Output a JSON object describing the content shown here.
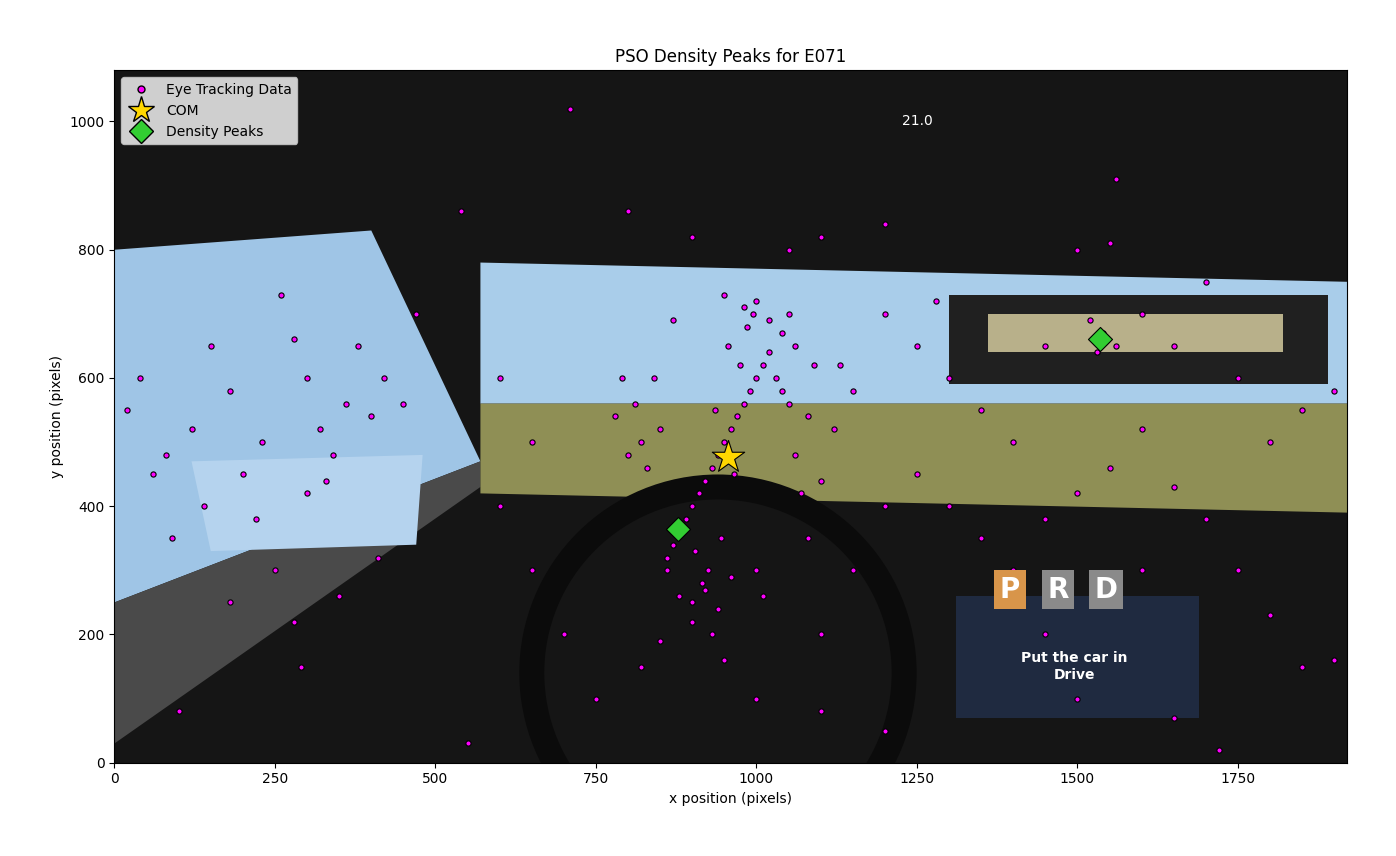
{
  "chart_data": {
    "type": "scatter",
    "title": "PSO Density Peaks for E071",
    "x_label": "x position (pixels)",
    "y_label": "y position (pixels)",
    "xlim": [
      0,
      1920
    ],
    "ylim": [
      0,
      1080
    ],
    "xticks": [
      0,
      250,
      500,
      750,
      1000,
      1250,
      1500,
      1750
    ],
    "yticks": [
      0,
      200,
      400,
      600,
      800,
      1000
    ],
    "legend": "upper left",
    "grid": false,
    "series": [
      {
        "name": "Eye Tracking Data",
        "color": "#ff00ff",
        "marker": "o",
        "points": [
          [
            950,
            500
          ],
          [
            960,
            520
          ],
          [
            940,
            480
          ],
          [
            970,
            540
          ],
          [
            930,
            460
          ],
          [
            980,
            560
          ],
          [
            920,
            440
          ],
          [
            990,
            580
          ],
          [
            910,
            420
          ],
          [
            1000,
            600
          ],
          [
            900,
            400
          ],
          [
            1010,
            620
          ],
          [
            890,
            380
          ],
          [
            1020,
            640
          ],
          [
            880,
            360
          ],
          [
            1030,
            600
          ],
          [
            870,
            340
          ],
          [
            1040,
            580
          ],
          [
            860,
            320
          ],
          [
            1050,
            560
          ],
          [
            955,
            650
          ],
          [
            945,
            350
          ],
          [
            965,
            450
          ],
          [
            935,
            550
          ],
          [
            975,
            620
          ],
          [
            925,
            300
          ],
          [
            985,
            680
          ],
          [
            915,
            280
          ],
          [
            995,
            700
          ],
          [
            905,
            330
          ],
          [
            850,
            520
          ],
          [
            1060,
            480
          ],
          [
            840,
            600
          ],
          [
            1070,
            420
          ],
          [
            830,
            460
          ],
          [
            1080,
            540
          ],
          [
            820,
            500
          ],
          [
            1090,
            620
          ],
          [
            810,
            560
          ],
          [
            1100,
            440
          ],
          [
            880,
            260
          ],
          [
            900,
            250
          ],
          [
            920,
            270
          ],
          [
            940,
            240
          ],
          [
            960,
            290
          ],
          [
            980,
            710
          ],
          [
            1000,
            720
          ],
          [
            1020,
            690
          ],
          [
            1040,
            670
          ],
          [
            1060,
            650
          ],
          [
            800,
            480
          ],
          [
            1120,
            520
          ],
          [
            790,
            600
          ],
          [
            1130,
            620
          ],
          [
            870,
            690
          ],
          [
            1050,
            700
          ],
          [
            950,
            730
          ],
          [
            1000,
            300
          ],
          [
            900,
            220
          ],
          [
            1080,
            350
          ],
          [
            1150,
            580
          ],
          [
            780,
            540
          ],
          [
            860,
            300
          ],
          [
            1010,
            260
          ],
          [
            930,
            200
          ],
          [
            20,
            550
          ],
          [
            40,
            600
          ],
          [
            80,
            480
          ],
          [
            120,
            520
          ],
          [
            150,
            650
          ],
          [
            180,
            580
          ],
          [
            200,
            450
          ],
          [
            230,
            500
          ],
          [
            260,
            730
          ],
          [
            280,
            660
          ],
          [
            300,
            600
          ],
          [
            320,
            520
          ],
          [
            340,
            480
          ],
          [
            360,
            560
          ],
          [
            380,
            650
          ],
          [
            400,
            540
          ],
          [
            420,
            600
          ],
          [
            450,
            560
          ],
          [
            470,
            700
          ],
          [
            220,
            380
          ],
          [
            250,
            300
          ],
          [
            300,
            420
          ],
          [
            330,
            440
          ],
          [
            180,
            250
          ],
          [
            90,
            350
          ],
          [
            140,
            400
          ],
          [
            280,
            220
          ],
          [
            350,
            260
          ],
          [
            410,
            320
          ],
          [
            60,
            450
          ],
          [
            100,
            80
          ],
          [
            290,
            150
          ],
          [
            1200,
            700
          ],
          [
            1250,
            650
          ],
          [
            1300,
            600
          ],
          [
            1350,
            550
          ],
          [
            1400,
            500
          ],
          [
            1450,
            650
          ],
          [
            1500,
            800
          ],
          [
            1550,
            810
          ],
          [
            1600,
            700
          ],
          [
            1650,
            650
          ],
          [
            1700,
            750
          ],
          [
            1750,
            600
          ],
          [
            1800,
            500
          ],
          [
            1850,
            550
          ],
          [
            1900,
            580
          ],
          [
            1250,
            450
          ],
          [
            1300,
            400
          ],
          [
            1350,
            350
          ],
          [
            1400,
            300
          ],
          [
            1450,
            380
          ],
          [
            1500,
            420
          ],
          [
            1550,
            460
          ],
          [
            1600,
            520
          ],
          [
            1650,
            430
          ],
          [
            1700,
            380
          ],
          [
            1750,
            300
          ],
          [
            1800,
            230
          ],
          [
            1850,
            150
          ],
          [
            1900,
            160
          ],
          [
            1450,
            200
          ],
          [
            1500,
            100
          ],
          [
            1600,
            300
          ],
          [
            1650,
            70
          ],
          [
            1720,
            20
          ],
          [
            1560,
            910
          ],
          [
            1280,
            720
          ],
          [
            1530,
            640
          ],
          [
            1540,
            670
          ],
          [
            1520,
            690
          ],
          [
            1560,
            650
          ],
          [
            540,
            860
          ],
          [
            710,
            1020
          ],
          [
            800,
            860
          ],
          [
            900,
            820
          ],
          [
            1050,
            800
          ],
          [
            1100,
            820
          ],
          [
            1200,
            840
          ],
          [
            600,
            400
          ],
          [
            650,
            300
          ],
          [
            700,
            200
          ],
          [
            750,
            100
          ],
          [
            820,
            150
          ],
          [
            1000,
            100
          ],
          [
            1100,
            80
          ],
          [
            1200,
            50
          ],
          [
            550,
            30
          ],
          [
            600,
            600
          ],
          [
            650,
            500
          ],
          [
            1150,
            300
          ],
          [
            1200,
            400
          ],
          [
            1100,
            200
          ],
          [
            950,
            160
          ],
          [
            850,
            190
          ]
        ]
      },
      {
        "name": "COM",
        "color": "#ffd700",
        "marker": "*",
        "points": [
          [
            955,
            477
          ]
        ]
      },
      {
        "name": "Density Peaks",
        "color": "#32cd32",
        "marker": "D",
        "points": [
          [
            1535,
            660
          ],
          [
            878,
            365
          ]
        ]
      }
    ],
    "annotations": [
      {
        "text": "21.0",
        "x": 1250,
        "y": 1000,
        "color": "#ffffff"
      },
      {
        "text": "P",
        "x": 1395,
        "y": 270,
        "color": "#ffffff"
      },
      {
        "text": "R",
        "x": 1470,
        "y": 270,
        "color": "#ffffff"
      },
      {
        "text": "D",
        "x": 1545,
        "y": 270,
        "color": "#ffffff"
      },
      {
        "text": "Put the car in\nDrive",
        "x": 1495,
        "y": 150,
        "color": "#ffffff"
      }
    ]
  }
}
